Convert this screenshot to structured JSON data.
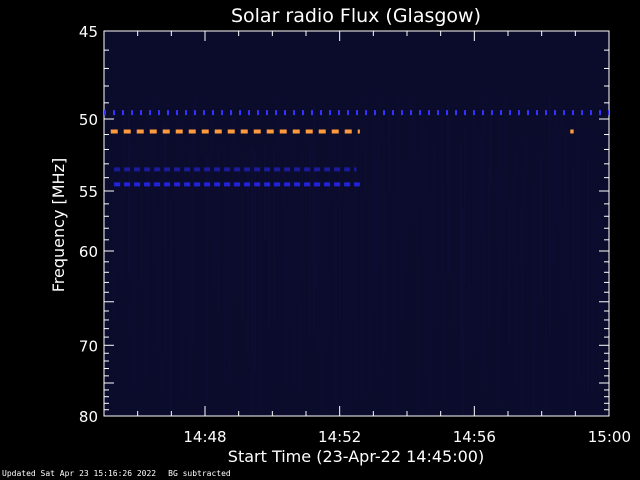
{
  "chart_data": {
    "type": "heatmap",
    "title": "Solar radio Flux (Glasgow)",
    "xlabel": "Start Time (23-Apr-22 14:45:00)",
    "ylabel": "Frequency [MHz]",
    "x_ticks": [
      "14:48",
      "14:52",
      "14:56",
      "15:00"
    ],
    "x_tick_minutes": [
      3,
      7,
      11,
      15
    ],
    "xlim_minutes": [
      0,
      15
    ],
    "ylim": [
      45,
      80
    ],
    "y_scale": "reciprocal",
    "y_ticks": [
      45,
      50,
      55,
      60,
      70,
      80
    ],
    "background_color": "#0b0b2c",
    "features": [
      {
        "description": "emission band",
        "frequency_mhz": 49.6,
        "start_minute": 0.0,
        "end_minute": 15.0,
        "color": "#3333ff",
        "style": "dashed"
      },
      {
        "description": "emission band",
        "frequency_mhz": 50.8,
        "start_minute": 0.2,
        "end_minute": 7.6,
        "color": "#ff9a3c",
        "style": "dashed"
      },
      {
        "description": "emission band",
        "frequency_mhz": 53.4,
        "start_minute": 0.3,
        "end_minute": 7.5,
        "color": "#1a1a9a",
        "style": "dashed"
      },
      {
        "description": "emission band",
        "frequency_mhz": 54.5,
        "start_minute": 0.3,
        "end_minute": 7.6,
        "color": "#2222dd",
        "style": "dashed"
      },
      {
        "description": "spot",
        "frequency_mhz": 50.8,
        "start_minute": 13.85,
        "end_minute": 13.95,
        "color": "#ff9a3c",
        "style": "solid"
      }
    ]
  },
  "footer": {
    "updated": "Updated Sat Apr 23 15:16:26 2022",
    "note": "BG subtracted"
  }
}
